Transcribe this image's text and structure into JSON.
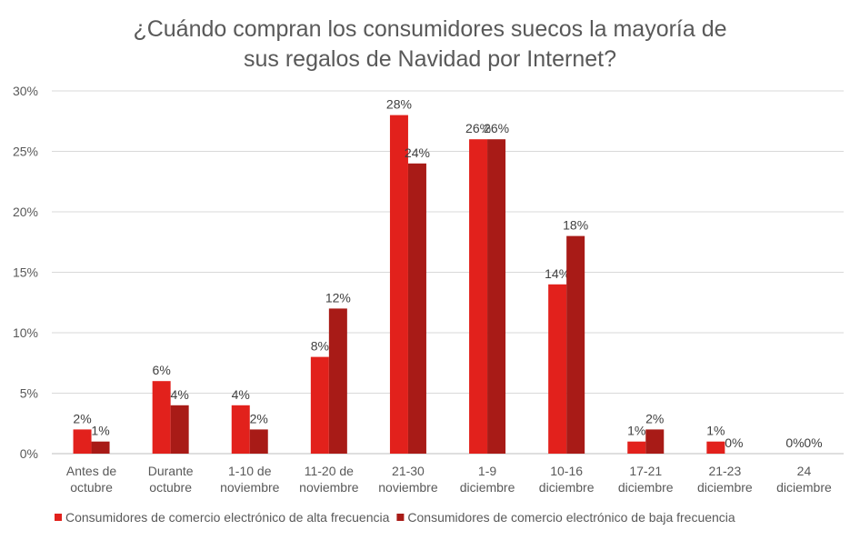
{
  "chart_data": {
    "type": "bar",
    "title": [
      "¿Cuándo compran los consumidores suecos la mayoría de",
      "sus regalos de Navidad por Internet?"
    ],
    "categories": [
      [
        "Antes de",
        "octubre"
      ],
      [
        "Durante",
        "octubre"
      ],
      [
        "1-10 de",
        "noviembre"
      ],
      [
        "11-20 de",
        "noviembre"
      ],
      [
        "21-30",
        "noviembre"
      ],
      [
        "1-9",
        "diciembre"
      ],
      [
        "10-16",
        "diciembre"
      ],
      [
        "17-21",
        "diciembre"
      ],
      [
        "21-23",
        "diciembre"
      ],
      [
        "24",
        "diciembre"
      ]
    ],
    "series": [
      {
        "name": "Consumidores de comercio electrónico de alta frecuencia",
        "color": "#E2211C",
        "values": [
          2,
          6,
          4,
          8,
          28,
          26,
          14,
          1,
          1,
          0
        ]
      },
      {
        "name": "Consumidores de comercio electrónico de baja frecuencia",
        "color": "#A81B17",
        "values": [
          1,
          4,
          2,
          12,
          24,
          26,
          18,
          2,
          0,
          0
        ]
      }
    ],
    "ylim": [
      0,
      30
    ],
    "yticks": [
      0,
      5,
      10,
      15,
      20,
      25,
      30
    ],
    "ytick_format": "%",
    "grid": true,
    "legend": "bottom"
  }
}
